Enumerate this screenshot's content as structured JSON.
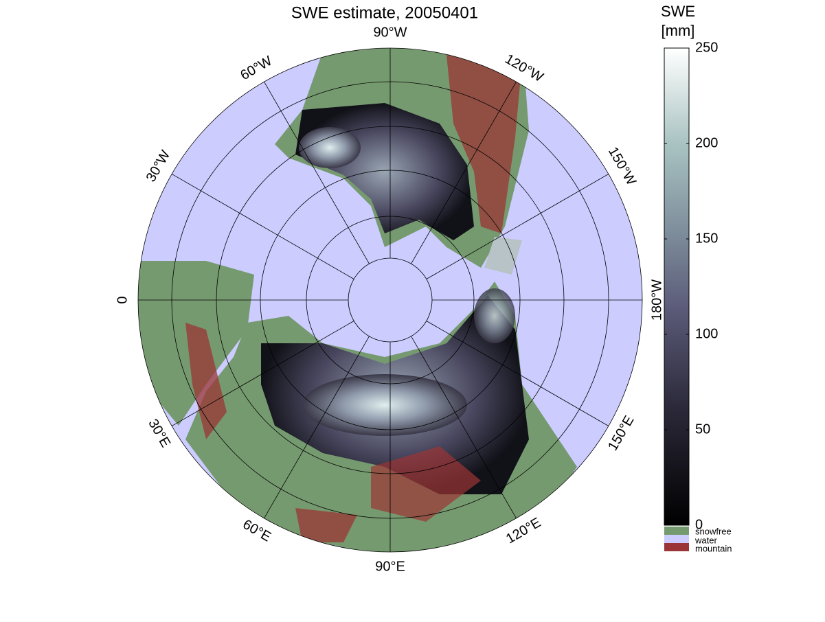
{
  "title": "SWE estimate, 20050401",
  "longitude_labels": [
    "90°W",
    "120°W",
    "150°W",
    "180°W",
    "150°E",
    "120°E",
    "90°E",
    "60°E",
    "30°E",
    "0",
    "30°W",
    "60°W"
  ],
  "colorbar": {
    "label": [
      "SWE",
      "[mm]"
    ],
    "lim": [
      0,
      250
    ],
    "ticks": [
      0,
      50,
      100,
      150,
      200,
      250
    ]
  },
  "legend": [
    "snowfree",
    "water",
    "mountain"
  ]
}
